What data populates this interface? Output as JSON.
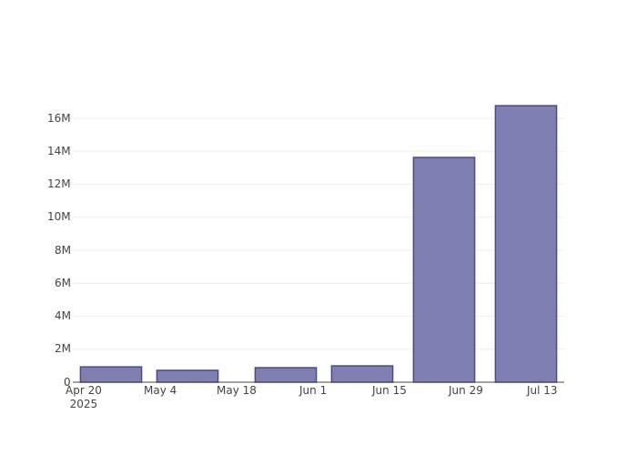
{
  "chart_data": {
    "type": "bar",
    "x": [
      "2025-04-25",
      "2025-05-09",
      "2025-05-27",
      "2025-06-10",
      "2025-06-25",
      "2025-07-10"
    ],
    "values": [
      930000,
      720000,
      880000,
      990000,
      13630000,
      16770000
    ],
    "color": "#7f7fb2",
    "line_color": "#4b4b82",
    "xlim": [
      "2025-04-18",
      "2025-07-17"
    ],
    "xticks": [
      {
        "value": "2025-04-20",
        "label": "Apr 20\n2025"
      },
      {
        "value": "2025-05-04",
        "label": "May 4"
      },
      {
        "value": "2025-05-18",
        "label": "May 18"
      },
      {
        "value": "2025-06-01",
        "label": "Jun 1"
      },
      {
        "value": "2025-06-15",
        "label": "Jun 15"
      },
      {
        "value": "2025-06-29",
        "label": "Jun 29"
      },
      {
        "value": "2025-07-13",
        "label": "Jul 13"
      }
    ],
    "ylim": [
      0,
      17660000
    ],
    "yticks": [
      0,
      {
        "value": 2000000,
        "label": "2M"
      },
      {
        "value": 4000000,
        "label": "4M"
      },
      {
        "value": 6000000,
        "label": "6M"
      },
      {
        "value": 8000000,
        "label": "8M"
      },
      {
        "value": 10000000,
        "label": "10M"
      },
      {
        "value": 12000000,
        "label": "12M"
      },
      {
        "value": 14000000,
        "label": "14M"
      },
      {
        "value": 16000000,
        "label": "16M"
      }
    ],
    "grid": true
  }
}
